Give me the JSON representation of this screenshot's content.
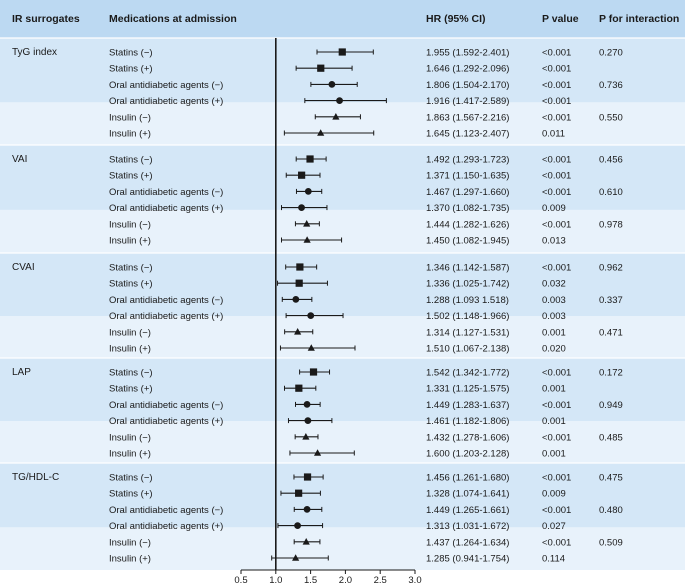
{
  "chart_data": {
    "type": "forest",
    "headers": {
      "surrogate": "IR surrogates",
      "medication": "Medications at admission",
      "hr": "HR (95% CI)",
      "p": "P value",
      "p_int": "P for interaction"
    },
    "x_axis": {
      "min": 0.5,
      "max": 3.0,
      "ticks": [
        "0.5",
        "1.0",
        "1.5",
        "2.0",
        "2.5",
        "3.0"
      ],
      "reference": 1.0
    },
    "colors": {
      "header": "#bcd9f2",
      "band_dark": "#d4e7f7",
      "band_light": "#e8f2fb",
      "ink": "#1a1a1a"
    },
    "groups": [
      {
        "name": "TyG index",
        "rows": [
          {
            "label": "Statins (−)",
            "hr": 1.955,
            "lo": 1.592,
            "hi": 2.401,
            "hr_text": "1.955 (1.592-2.401)",
            "p": "<0.001",
            "p_int": "0.270",
            "marker": "square"
          },
          {
            "label": "Statins (+)",
            "hr": 1.646,
            "lo": 1.292,
            "hi": 2.096,
            "hr_text": "1.646 (1.292-2.096)",
            "p": "<0.001",
            "p_int": "",
            "marker": "square"
          },
          {
            "label": "Oral antidiabetic agents (−)",
            "hr": 1.806,
            "lo": 1.504,
            "hi": 2.17,
            "hr_text": "1.806 (1.504-2.170)",
            "p": "<0.001",
            "p_int": "0.736",
            "marker": "circle"
          },
          {
            "label": "Oral antidiabetic agents (+)",
            "hr": 1.916,
            "lo": 1.417,
            "hi": 2.589,
            "hr_text": "1.916 (1.417-2.589)",
            "p": "<0.001",
            "p_int": "",
            "marker": "circle"
          },
          {
            "label": "Insulin (−)",
            "hr": 1.863,
            "lo": 1.567,
            "hi": 2.216,
            "hr_text": "1.863 (1.567-2.216)",
            "p": "<0.001",
            "p_int": "0.550",
            "marker": "triangle"
          },
          {
            "label": "Insulin (+)",
            "hr": 1.645,
            "lo": 1.123,
            "hi": 2.407,
            "hr_text": "1.645 (1.123-2.407)",
            "p": "0.011",
            "p_int": "",
            "marker": "triangle"
          }
        ]
      },
      {
        "name": "VAI",
        "rows": [
          {
            "label": "Statins (−)",
            "hr": 1.492,
            "lo": 1.293,
            "hi": 1.723,
            "hr_text": "1.492 (1.293-1.723)",
            "p": "<0.001",
            "p_int": "0.456",
            "marker": "square"
          },
          {
            "label": "Statins (+)",
            "hr": 1.371,
            "lo": 1.15,
            "hi": 1.635,
            "hr_text": "1.371 (1.150-1.635)",
            "p": "<0.001",
            "p_int": "",
            "marker": "square"
          },
          {
            "label": "Oral antidiabetic agents (−)",
            "hr": 1.467,
            "lo": 1.297,
            "hi": 1.66,
            "hr_text": "1.467 (1.297-1.660)",
            "p": "<0.001",
            "p_int": "0.610",
            "marker": "circle"
          },
          {
            "label": "Oral antidiabetic agents (+)",
            "hr": 1.37,
            "lo": 1.082,
            "hi": 1.735,
            "hr_text": "1.370 (1.082-1.735)",
            "p": "0.009",
            "p_int": "",
            "marker": "circle"
          },
          {
            "label": "Insulin (−)",
            "hr": 1.444,
            "lo": 1.282,
            "hi": 1.626,
            "hr_text": "1.444 (1.282-1.626)",
            "p": "<0.001",
            "p_int": "0.978",
            "marker": "triangle"
          },
          {
            "label": "Insulin (+)",
            "hr": 1.45,
            "lo": 1.082,
            "hi": 1.945,
            "hr_text": "1.450 (1.082-1.945)",
            "p": "0.013",
            "p_int": "",
            "marker": "triangle"
          }
        ]
      },
      {
        "name": "CVAI",
        "rows": [
          {
            "label": "Statins (−)",
            "hr": 1.346,
            "lo": 1.142,
            "hi": 1.587,
            "hr_text": "1.346 (1.142-1.587)",
            "p": "<0.001",
            "p_int": "0.962",
            "marker": "square"
          },
          {
            "label": "Statins (+)",
            "hr": 1.336,
            "lo": 1.025,
            "hi": 1.742,
            "hr_text": "1.336 (1.025-1.742)",
            "p": "0.032",
            "p_int": "",
            "marker": "square"
          },
          {
            "label": "Oral antidiabetic agents (−)",
            "hr": 1.288,
            "lo": 1.093,
            "hi": 1.518,
            "hr_text": "1.288 (1.093 1.518)",
            "p": "0.003",
            "p_int": "0.337",
            "marker": "circle"
          },
          {
            "label": "Oral antidiabetic agents (+)",
            "hr": 1.502,
            "lo": 1.148,
            "hi": 1.966,
            "hr_text": "1.502 (1.148-1.966)",
            "p": "0.003",
            "p_int": "",
            "marker": "circle"
          },
          {
            "label": "Insulin (−)",
            "hr": 1.314,
            "lo": 1.127,
            "hi": 1.531,
            "hr_text": "1.314 (1.127-1.531)",
            "p": "0.001",
            "p_int": "0.471",
            "marker": "triangle"
          },
          {
            "label": "Insulin (+)",
            "hr": 1.51,
            "lo": 1.067,
            "hi": 2.138,
            "hr_text": "1.510 (1.067-2.138)",
            "p": "0.020",
            "p_int": "",
            "marker": "triangle"
          }
        ]
      },
      {
        "name": "LAP",
        "rows": [
          {
            "label": "Statins (−)",
            "hr": 1.542,
            "lo": 1.342,
            "hi": 1.772,
            "hr_text": "1.542 (1.342-1.772)",
            "p": "<0.001",
            "p_int": "0.172",
            "marker": "square"
          },
          {
            "label": "Statins (+)",
            "hr": 1.331,
            "lo": 1.125,
            "hi": 1.575,
            "hr_text": "1.331 (1.125-1.575)",
            "p": "0.001",
            "p_int": "",
            "marker": "square"
          },
          {
            "label": "Oral antidiabetic agents (−)",
            "hr": 1.449,
            "lo": 1.283,
            "hi": 1.637,
            "hr_text": "1.449 (1.283-1.637)",
            "p": "<0.001",
            "p_int": "0.949",
            "marker": "circle"
          },
          {
            "label": "Oral antidiabetic agents (+)",
            "hr": 1.461,
            "lo": 1.182,
            "hi": 1.806,
            "hr_text": "1.461 (1.182-1.806)",
            "p": "0.001",
            "p_int": "",
            "marker": "circle"
          },
          {
            "label": "Insulin (−)",
            "hr": 1.432,
            "lo": 1.278,
            "hi": 1.606,
            "hr_text": "1.432 (1.278-1.606)",
            "p": "<0.001",
            "p_int": "0.485",
            "marker": "triangle"
          },
          {
            "label": "Insulin (+)",
            "hr": 1.6,
            "lo": 1.203,
            "hi": 2.128,
            "hr_text": "1.600 (1.203-2.128)",
            "p": "0.001",
            "p_int": "",
            "marker": "triangle"
          }
        ]
      },
      {
        "name": "TG/HDL-C",
        "rows": [
          {
            "label": "Statins (−)",
            "hr": 1.456,
            "lo": 1.261,
            "hi": 1.68,
            "hr_text": "1.456 (1.261-1.680)",
            "p": "<0.001",
            "p_int": "0.475",
            "marker": "square"
          },
          {
            "label": "Statins (+)",
            "hr": 1.328,
            "lo": 1.074,
            "hi": 1.641,
            "hr_text": "1.328 (1.074-1.641)",
            "p": "0.009",
            "p_int": "",
            "marker": "square"
          },
          {
            "label": "Oral antidiabetic agents (−)",
            "hr": 1.449,
            "lo": 1.265,
            "hi": 1.661,
            "hr_text": "1.449 (1.265-1.661)",
            "p": "<0.001",
            "p_int": "0.480",
            "marker": "circle"
          },
          {
            "label": "Oral antidiabetic agents (+)",
            "hr": 1.313,
            "lo": 1.031,
            "hi": 1.672,
            "hr_text": "1.313 (1.031-1.672)",
            "p": "0.027",
            "p_int": "",
            "marker": "circle"
          },
          {
            "label": "Insulin (−)",
            "hr": 1.437,
            "lo": 1.264,
            "hi": 1.634,
            "hr_text": "1.437 (1.264-1.634)",
            "p": "<0.001",
            "p_int": "0.509",
            "marker": "triangle"
          },
          {
            "label": "Insulin (+)",
            "hr": 1.285,
            "lo": 0.941,
            "hi": 1.754,
            "hr_text": "1.285 (0.941-1.754)",
            "p": "0.114",
            "p_int": "",
            "marker": "triangle"
          }
        ]
      }
    ]
  }
}
